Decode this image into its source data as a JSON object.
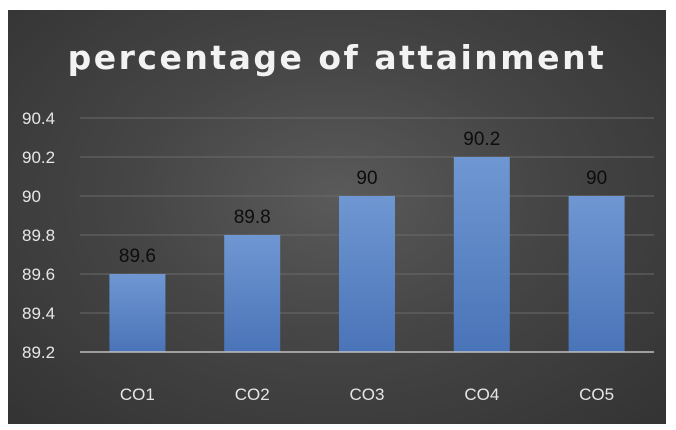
{
  "chart_data": {
    "type": "bar",
    "title": "percentage of attainment",
    "categories": [
      "CO1",
      "CO2",
      "CO3",
      "CO4",
      "CO5"
    ],
    "values": [
      89.6,
      89.8,
      90,
      90.2,
      90
    ],
    "data_labels": [
      "89.6",
      "89.8",
      "90",
      "90.2",
      "90"
    ],
    "xlabel": "",
    "ylabel": "",
    "ylim": [
      89.2,
      90.4
    ],
    "yticks": [
      89.2,
      89.4,
      89.6,
      89.8,
      90,
      90.2,
      90.4
    ],
    "ytick_labels": [
      "89.2",
      "89.4",
      "89.6",
      "89.8",
      "90",
      "90.2",
      "90.4"
    ],
    "grid": true,
    "legend": "none",
    "colors": {
      "bar_top": "#6f97d2",
      "bar_bottom": "#4a74b8",
      "grid": "#6a6a6a",
      "axis": "#bfbfbf"
    }
  }
}
